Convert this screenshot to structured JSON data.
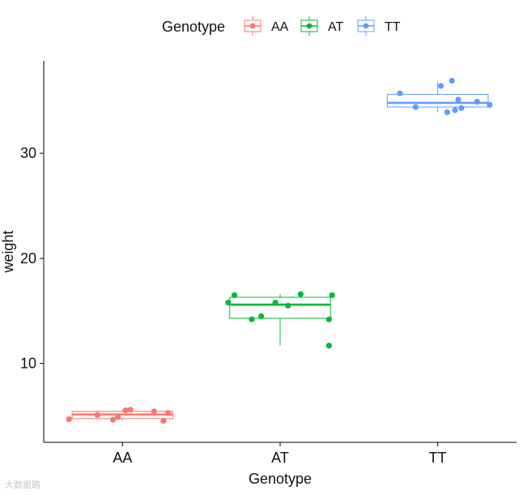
{
  "chart_data": {
    "type": "boxplot",
    "title": "",
    "xlabel": "Genotype",
    "ylabel": "weight",
    "categories": [
      "AA",
      "AT",
      "TT"
    ],
    "ylim": [
      2.5,
      38.8
    ],
    "yticks": [
      10,
      20,
      30
    ],
    "colors": {
      "AA": "#F8766D",
      "AT": "#00BA38",
      "TT": "#619CFF"
    },
    "legend": {
      "title": "Genotype",
      "position": "top",
      "entries": [
        "AA",
        "AT",
        "TT"
      ]
    },
    "series": [
      {
        "name": "AA",
        "box": {
          "min": 4.6,
          "q1": 4.75,
          "median": 5.15,
          "q3": 5.45,
          "max": 5.6
        },
        "points": [
          {
            "dx": -0.34,
            "y": 4.7
          },
          {
            "dx": -0.16,
            "y": 5.1
          },
          {
            "dx": -0.06,
            "y": 4.65
          },
          {
            "dx": -0.03,
            "y": 4.9
          },
          {
            "dx": 0.02,
            "y": 5.55
          },
          {
            "dx": 0.05,
            "y": 5.6
          },
          {
            "dx": 0.2,
            "y": 5.45
          },
          {
            "dx": 0.26,
            "y": 4.55
          },
          {
            "dx": 0.29,
            "y": 5.3
          }
        ]
      },
      {
        "name": "AT",
        "box": {
          "min": 11.7,
          "q1": 14.3,
          "median": 15.6,
          "q3": 16.3,
          "max": 16.6
        },
        "points": [
          {
            "dx": -0.33,
            "y": 15.8
          },
          {
            "dx": -0.29,
            "y": 16.5
          },
          {
            "dx": -0.18,
            "y": 14.2
          },
          {
            "dx": -0.12,
            "y": 14.5
          },
          {
            "dx": -0.03,
            "y": 15.8
          },
          {
            "dx": 0.05,
            "y": 15.5
          },
          {
            "dx": 0.13,
            "y": 16.6
          },
          {
            "dx": 0.31,
            "y": 14.2
          },
          {
            "dx": 0.31,
            "y": 11.7
          },
          {
            "dx": 0.33,
            "y": 16.5
          }
        ]
      },
      {
        "name": "TT",
        "box": {
          "min": 33.9,
          "q1": 34.4,
          "median": 34.8,
          "q3": 35.6,
          "max": 36.8
        },
        "points": [
          {
            "dx": -0.24,
            "y": 35.7
          },
          {
            "dx": -0.14,
            "y": 34.4
          },
          {
            "dx": 0.02,
            "y": 36.4
          },
          {
            "dx": 0.09,
            "y": 36.9
          },
          {
            "dx": 0.13,
            "y": 35.1
          },
          {
            "dx": 0.06,
            "y": 33.9
          },
          {
            "dx": 0.11,
            "y": 34.1
          },
          {
            "dx": 0.15,
            "y": 34.3
          },
          {
            "dx": 0.25,
            "y": 34.9
          },
          {
            "dx": 0.33,
            "y": 34.6
          }
        ]
      }
    ]
  },
  "watermark": "大数据路"
}
